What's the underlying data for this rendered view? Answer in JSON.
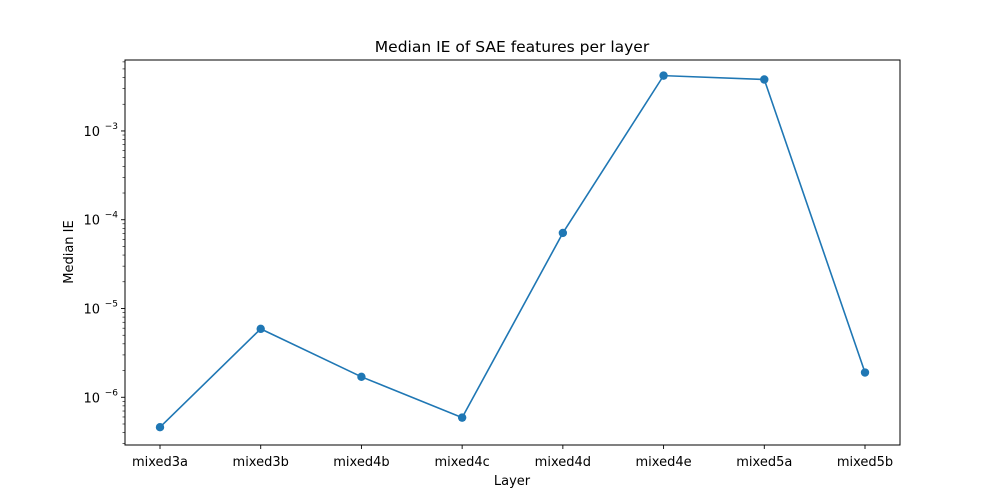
{
  "chart_data": {
    "type": "line",
    "title": "Median IE of SAE features per layer",
    "xlabel": "Layer",
    "ylabel": "Median IE",
    "categories": [
      "mixed3a",
      "mixed3b",
      "mixed4b",
      "mixed4c",
      "mixed4d",
      "mixed4e",
      "mixed5a",
      "mixed5b"
    ],
    "series": [
      {
        "values": [
          4.6e-07,
          5.9e-06,
          1.7e-06,
          5.9e-07,
          7.1e-05,
          0.0042,
          0.0038,
          1.9e-06
        ],
        "color": "#1f77b4",
        "marker": "circle"
      }
    ],
    "y_scale": "log",
    "ylim": [
      2.9e-07,
      0.0063
    ],
    "y_ticks": [
      {
        "value": 1e-06,
        "base": "10",
        "exp": "−6"
      },
      {
        "value": 1e-05,
        "base": "10",
        "exp": "−5"
      },
      {
        "value": 0.0001,
        "base": "10",
        "exp": "−4"
      },
      {
        "value": 0.001,
        "base": "10",
        "exp": "−3"
      }
    ],
    "grid": false,
    "legend": "none"
  }
}
